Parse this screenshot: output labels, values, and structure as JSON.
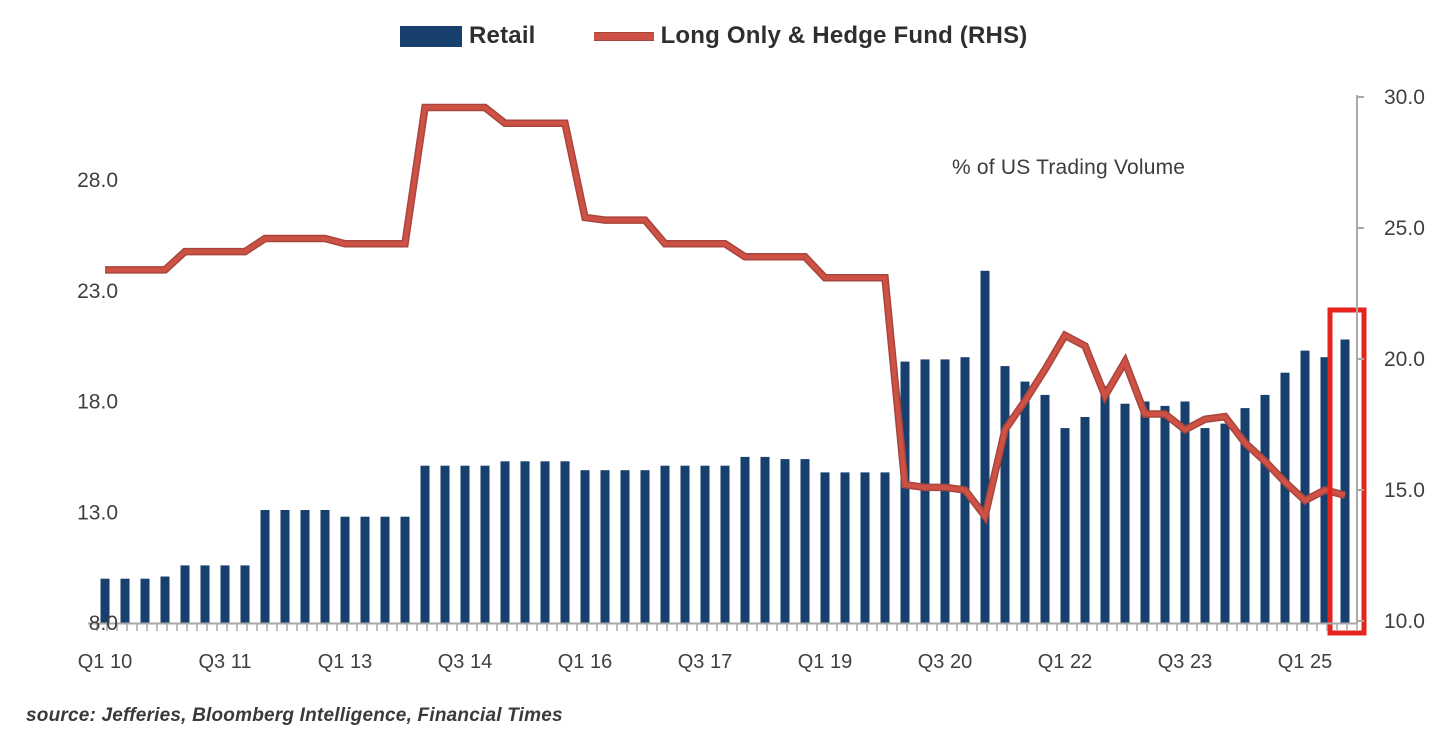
{
  "legend": {
    "items": [
      {
        "label": "Retail",
        "type": "bar",
        "color": "#17406f"
      },
      {
        "label": "Long Only & Hedge Fund (RHS)",
        "type": "line",
        "color": "#cd5145"
      }
    ]
  },
  "annotation": "% of US Trading Volume",
  "source_note": "source: Jefferies, Bloomberg Intelligence, Financial Times",
  "colors": {
    "bar": "#17406f",
    "line": "#cd5145",
    "line_edge": "#a8453c",
    "highlight_box": "#e6231c",
    "axis": "#a9a9a9",
    "label_text": "#3f3f3f"
  },
  "chart_data": {
    "type": "combo_bar_line",
    "title": "",
    "categories": [
      "Q1 10",
      "Q2 10",
      "Q3 10",
      "Q4 10",
      "Q1 11",
      "Q2 11",
      "Q3 11",
      "Q4 11",
      "Q1 12",
      "Q2 12",
      "Q3 12",
      "Q4 12",
      "Q1 13",
      "Q2 13",
      "Q3 13",
      "Q4 13",
      "Q1 14",
      "Q2 14",
      "Q3 14",
      "Q4 14",
      "Q1 15",
      "Q2 15",
      "Q3 15",
      "Q4 15",
      "Q1 16",
      "Q2 16",
      "Q3 16",
      "Q4 16",
      "Q1 17",
      "Q2 17",
      "Q3 17",
      "Q4 17",
      "Q1 18",
      "Q2 18",
      "Q3 18",
      "Q4 18",
      "Q1 19",
      "Q2 19",
      "Q3 19",
      "Q4 19",
      "Q1 20",
      "Q2 20",
      "Q3 20",
      "Q4 20",
      "Q1 21",
      "Q2 21",
      "Q3 21",
      "Q4 21",
      "Q1 22",
      "Q2 22",
      "Q3 22",
      "Q4 22",
      "Q1 23",
      "Q2 23",
      "Q3 23",
      "Q4 23",
      "Q1 24",
      "Q2 24",
      "Q3 24",
      "Q4 24",
      "Q1 25",
      "Q2 25",
      "Q3 25"
    ],
    "series": [
      {
        "name": "Retail",
        "type": "bar",
        "axis": "left",
        "values": [
          10.0,
          10.0,
          10.0,
          10.1,
          10.6,
          10.6,
          10.6,
          10.6,
          13.1,
          13.1,
          13.1,
          13.1,
          12.8,
          12.8,
          12.8,
          12.8,
          15.1,
          15.1,
          15.1,
          15.1,
          15.3,
          15.3,
          15.3,
          15.3,
          14.9,
          14.9,
          14.9,
          14.9,
          15.1,
          15.1,
          15.1,
          15.1,
          15.5,
          15.5,
          15.4,
          15.4,
          14.8,
          14.8,
          14.8,
          14.8,
          19.8,
          19.9,
          19.9,
          20.0,
          23.9,
          19.6,
          18.9,
          18.3,
          16.8,
          17.3,
          18.7,
          17.9,
          18.0,
          17.8,
          18.0,
          16.8,
          17.0,
          17.7,
          18.3,
          19.3,
          20.3,
          20.0,
          20.8
        ]
      },
      {
        "name": "Long Only & Hedge Fund (RHS)",
        "type": "line",
        "axis": "right",
        "values": [
          23.4,
          23.4,
          23.4,
          23.4,
          24.1,
          24.1,
          24.1,
          24.1,
          24.6,
          24.6,
          24.6,
          24.6,
          24.4,
          24.4,
          24.4,
          24.4,
          29.6,
          29.6,
          29.6,
          29.6,
          29.0,
          29.0,
          29.0,
          29.0,
          25.4,
          25.3,
          25.3,
          25.3,
          24.4,
          24.4,
          24.4,
          24.4,
          23.9,
          23.9,
          23.9,
          23.9,
          23.1,
          23.1,
          23.1,
          23.1,
          15.2,
          15.1,
          15.1,
          15.0,
          14.0,
          17.3,
          18.4,
          19.6,
          20.9,
          20.5,
          18.6,
          19.9,
          17.9,
          17.9,
          17.3,
          17.7,
          17.8,
          16.8,
          16.1,
          15.3,
          14.6,
          15.0,
          14.8
        ]
      }
    ],
    "left_axis": {
      "range": [
        8,
        28
      ],
      "ticks": [
        8,
        13,
        18,
        23,
        28
      ],
      "tick_labels": [
        "8.0",
        "13.0",
        "18.0",
        "23.0",
        "28.0"
      ]
    },
    "right_axis": {
      "range": [
        10,
        30
      ],
      "ticks": [
        10,
        15,
        20,
        25,
        30
      ],
      "tick_labels": [
        "10.0",
        "15.0",
        "20.0",
        "25.0",
        "30.0"
      ]
    },
    "x_axis": {
      "label_every": 6,
      "visible_labels": [
        "Q1 10",
        "Q3 11",
        "Q1 13",
        "Q3 14",
        "Q1 16",
        "Q3 17",
        "Q1 19",
        "Q3 20",
        "Q1 22",
        "Q3 23",
        "Q1 25"
      ]
    },
    "grid": false,
    "legend_position": "top",
    "highlight": {
      "target": "last-bar",
      "shape": "red-box",
      "category": "Q3 25"
    }
  }
}
